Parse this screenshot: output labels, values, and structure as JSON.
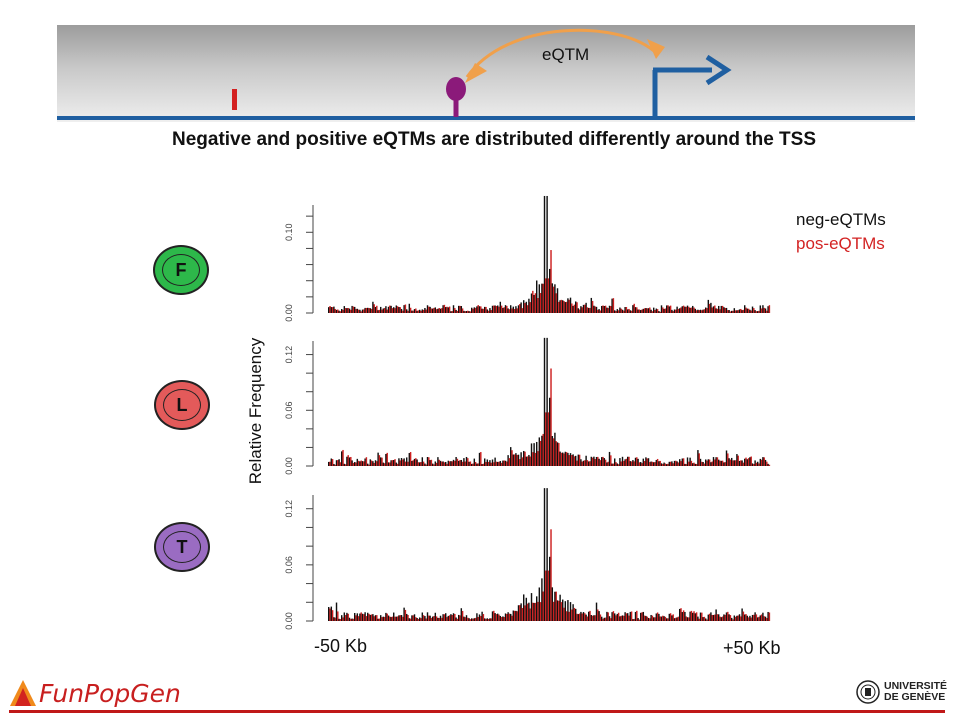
{
  "banner": {
    "eqtm_label": "eQTM"
  },
  "subtitle": "Negative and positive eQTMs are distributed differently around the TSS",
  "tissues": [
    {
      "letter": "F",
      "color": "#2db84a"
    },
    {
      "letter": "L",
      "color": "#e35a5a"
    },
    {
      "letter": "T",
      "color": "#9a6cc2"
    }
  ],
  "legend": {
    "neg": "neg-eQTMs",
    "pos": "pos-eQTMs"
  },
  "colors": {
    "neg": "#111111",
    "pos": "#cc1f1f",
    "banner_line": "#1f5fa1",
    "arrow": "#f0a04b"
  },
  "chart_data": [
    {
      "type": "bar",
      "panel": "F",
      "ylim": [
        0,
        0.14
      ],
      "ytick_labels": [
        "0.00",
        "0.10"
      ],
      "yticks_minor": [
        0.02,
        0.04,
        0.06,
        0.08,
        0.12
      ],
      "xlabel_left": "-50 Kb",
      "xlabel_right": "+50 Kb",
      "ylabel": "Relative Frequency",
      "neg_peak": 0.145,
      "pos_peak": 0.078,
      "noise_level": 0.005,
      "series": [
        {
          "name": "neg-eQTMs"
        },
        {
          "name": "pos-eQTMs"
        }
      ]
    },
    {
      "type": "bar",
      "panel": "L",
      "ylim": [
        0,
        0.14
      ],
      "ytick_labels": [
        "0.00",
        "0.06",
        "0.12"
      ],
      "yticks_minor": [
        0.02,
        0.04,
        0.08,
        0.1
      ],
      "neg_peak": 0.138,
      "pos_peak": 0.105,
      "noise_level": 0.005,
      "series": [
        {
          "name": "neg-eQTMs"
        },
        {
          "name": "pos-eQTMs"
        }
      ]
    },
    {
      "type": "bar",
      "panel": "T",
      "ylim": [
        0,
        0.14
      ],
      "ytick_labels": [
        "0.00",
        "0.06",
        "0.12"
      ],
      "yticks_minor": [
        0.02,
        0.04,
        0.08,
        0.1
      ],
      "neg_peak": 0.142,
      "pos_peak": 0.098,
      "noise_level": 0.005,
      "series": [
        {
          "name": "neg-eQTMs"
        },
        {
          "name": "pos-eQTMs"
        }
      ]
    }
  ],
  "axis": {
    "left": "-50 Kb",
    "right": "+50 Kb"
  },
  "logos": {
    "left": "FunPopGen",
    "right_line1": "UNIVERSITÉ",
    "right_line2": "DE GENÈVE"
  }
}
